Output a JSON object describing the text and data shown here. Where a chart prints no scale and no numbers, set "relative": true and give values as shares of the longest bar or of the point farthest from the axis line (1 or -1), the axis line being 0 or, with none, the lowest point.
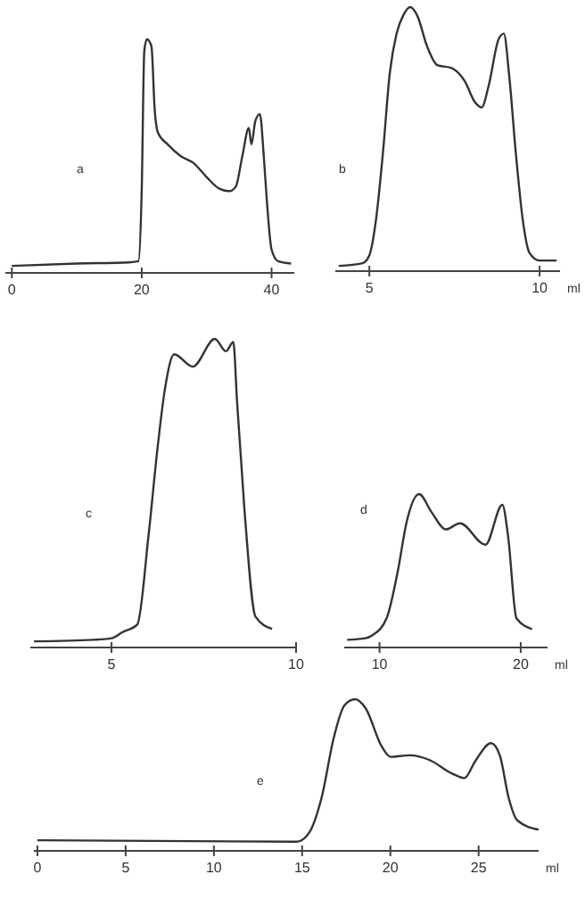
{
  "chart_data": [
    {
      "type": "line",
      "relative": true,
      "annotations": [
        "a"
      ],
      "xlim": [
        -1,
        43.5
      ],
      "xticks": [
        0,
        20,
        40
      ],
      "x": [
        0,
        10,
        18,
        19.5,
        20,
        20.4,
        20.8,
        21.5,
        22,
        22.5,
        24,
        26,
        28,
        30,
        32,
        33.5,
        34.5,
        35.5,
        36.5,
        36.9,
        37.5,
        38.2,
        38.8,
        39.3,
        40,
        41,
        43
      ],
      "values": [
        0.03,
        0.04,
        0.045,
        0.05,
        0.35,
        0.95,
        1.0,
        0.97,
        0.7,
        0.6,
        0.55,
        0.5,
        0.47,
        0.41,
        0.36,
        0.35,
        0.37,
        0.5,
        0.62,
        0.55,
        0.65,
        0.68,
        0.5,
        0.3,
        0.1,
        0.05,
        0.04
      ],
      "color": "#333333"
    },
    {
      "type": "line",
      "relative": true,
      "annotations": [
        "b"
      ],
      "xlabel": "ml",
      "xlim": [
        4,
        10.6
      ],
      "xticks": [
        5,
        10
      ],
      "x": [
        4.1,
        4.8,
        5.0,
        5.2,
        5.4,
        5.6,
        5.8,
        6.0,
        6.2,
        6.4,
        6.7,
        7.0,
        7.4,
        7.8,
        8.1,
        8.3,
        8.5,
        8.8,
        8.95,
        9.1,
        9.3,
        9.5,
        9.7,
        10,
        10.5
      ],
      "values": [
        0.02,
        0.03,
        0.06,
        0.2,
        0.45,
        0.75,
        0.9,
        0.97,
        1.0,
        0.97,
        0.85,
        0.78,
        0.77,
        0.72,
        0.64,
        0.62,
        0.7,
        0.88,
        0.9,
        0.75,
        0.45,
        0.2,
        0.07,
        0.04,
        0.04
      ],
      "color": "#333333"
    },
    {
      "type": "line",
      "relative": true,
      "annotations": [
        "c"
      ],
      "xlim": [
        2.8,
        10
      ],
      "xticks": [
        5,
        10
      ],
      "x": [
        2.9,
        4.5,
        5.0,
        5.3,
        5.7,
        6.0,
        6.25,
        6.45,
        6.7,
        7.2,
        7.8,
        8.1,
        8.3,
        8.4,
        8.6,
        8.9,
        9.35
      ],
      "values": [
        0.02,
        0.025,
        0.03,
        0.05,
        0.075,
        0.36,
        0.65,
        0.84,
        0.95,
        0.91,
        1.0,
        0.96,
        0.99,
        0.8,
        0.45,
        0.1,
        0.06
      ],
      "color": "#333333"
    },
    {
      "type": "line",
      "relative": true,
      "annotations": [
        "d"
      ],
      "xlabel": "ml",
      "xlim": [
        7.5,
        21.9
      ],
      "xticks": [
        10,
        20
      ],
      "x": [
        7.7,
        9,
        9.5,
        10.5,
        11.3,
        11.9,
        12.8,
        13.7,
        14.7,
        15.7,
        17.5,
        18.7,
        19.1,
        19.7,
        20.8
      ],
      "values": [
        0.05,
        0.06,
        0.08,
        0.19,
        0.5,
        0.81,
        1.0,
        0.88,
        0.77,
        0.81,
        0.67,
        0.93,
        0.73,
        0.19,
        0.12
      ],
      "color": "#333333"
    },
    {
      "type": "line",
      "relative": true,
      "annotations": [
        "e"
      ],
      "xlabel": "ml",
      "xlim": [
        -0.2,
        28.4
      ],
      "xticks": [
        0,
        5,
        10,
        15,
        20,
        25
      ],
      "x": [
        0,
        14.7,
        15.4,
        16.1,
        16.8,
        17.4,
        18.0,
        18.6,
        19.5,
        20.0,
        21.1,
        22.2,
        23.5,
        24.2,
        24.8,
        25.7,
        26.2,
        26.7,
        27.2,
        28.4
      ],
      "values": [
        0.07,
        0.06,
        0.12,
        0.35,
        0.75,
        0.96,
        1.0,
        0.94,
        0.69,
        0.62,
        0.63,
        0.6,
        0.51,
        0.48,
        0.59,
        0.71,
        0.63,
        0.35,
        0.2,
        0.14
      ],
      "color": "#333333"
    }
  ]
}
